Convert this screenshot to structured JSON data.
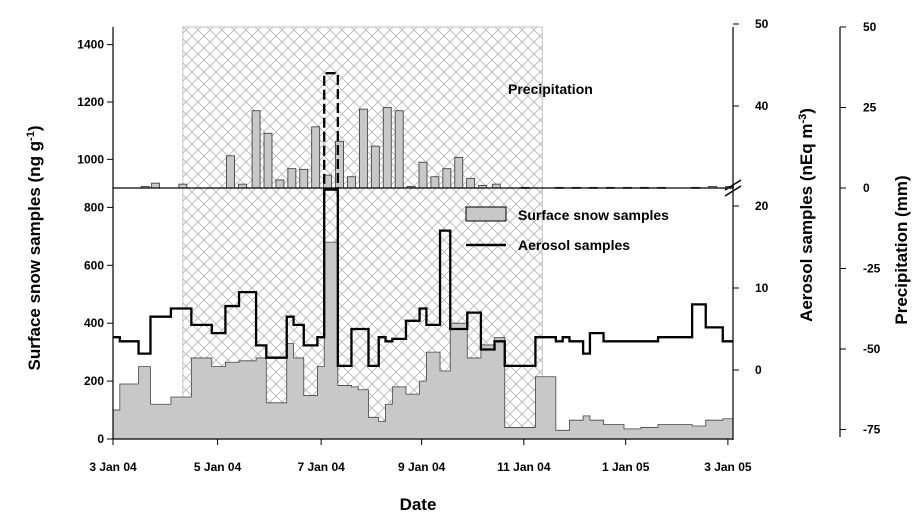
{
  "chart_data": {
    "type": "bar",
    "xlabel": "Date",
    "x_tick_labels": [
      "3 Jan 04",
      "5 Jan 04",
      "7 Jan 04",
      "9 Jan 04",
      "11 Jan 04",
      "1 Jan 05",
      "3 Jan 05"
    ],
    "ylabel_left_lower": "Surface snow samples (ng g⁻¹)",
    "ylabel_left_lower_base": "Surface snow samples (ng g",
    "ylabel_left_lower_sup": "-1",
    "ylabel_left_lower_close": ")",
    "ylabel_right_inner": "Aerosol samples (nEq m⁻³)",
    "ylabel_right_inner_base": "Aerosol samples (nEq m",
    "ylabel_right_inner_sup": "-3",
    "ylabel_right_inner_close": ")",
    "ylabel_right_outer": "Precipitation (mm)",
    "annotation_upper": "Precipitation",
    "left_upper_ticks": [
      "1000",
      "1200",
      "1400"
    ],
    "left_lower_ticks": [
      "0",
      "200",
      "400",
      "600",
      "800"
    ],
    "right_inner_upper_ticks": [
      "40",
      "50"
    ],
    "right_inner_lower_ticks": [
      "0",
      "10",
      "20"
    ],
    "right_outer_ticks": [
      "-75",
      "-50",
      "-25",
      "0",
      "25",
      "50"
    ],
    "legend": [
      {
        "name": "Surface snow samples",
        "style": "filled-gray"
      },
      {
        "name": "Aerosol samples",
        "style": "black-line"
      }
    ],
    "colors": {
      "snow_fill": "#c8c8c8",
      "line": "#000000",
      "hatch": "#b4b4b4"
    },
    "series": [
      {
        "name": "Surface snow samples",
        "unit": "ng g-1",
        "x": [
          0,
          0.2,
          0.75,
          1.1,
          1.7,
          2.3,
          2.9,
          3.3,
          3.7,
          4.2,
          4.5,
          5.1,
          5.3,
          5.6,
          6.0,
          6.2,
          6.6,
          7.0,
          7.2,
          7.5,
          7.8,
          8.0,
          8.2,
          8.6,
          9.0,
          9.2,
          9.6,
          9.9,
          10.4,
          10.8,
          11.2,
          11.5,
          12.4,
          12.7,
          13.0,
          13.2,
          13.4,
          13.8,
          14.0,
          14.4,
          15.0,
          15.5,
          16.0,
          16.6,
          17.0,
          17.4,
          17.9,
          18.0,
          18.2
        ],
        "y": [
          100,
          190,
          250,
          120,
          145,
          280,
          250,
          265,
          270,
          280,
          125,
          330,
          280,
          150,
          250,
          680,
          185,
          180,
          170,
          75,
          60,
          120,
          180,
          155,
          200,
          300,
          235,
          400,
          280,
          325,
          350,
          40,
          215,
          215,
          30,
          30,
          65,
          80,
          65,
          50,
          35,
          40,
          50,
          50,
          45,
          65,
          70,
          70,
          110
        ]
      },
      {
        "name": "Aerosol samples",
        "unit": "nEq m-3",
        "x": [
          0,
          0.2,
          0.75,
          1.1,
          1.7,
          2.3,
          2.9,
          3.3,
          3.7,
          4.2,
          4.5,
          5.1,
          5.3,
          5.6,
          6.0,
          6.2,
          6.6,
          7.0,
          7.2,
          7.5,
          7.8,
          8.0,
          8.2,
          8.6,
          9.0,
          9.2,
          9.6,
          9.9,
          10.4,
          10.8,
          11.2,
          11.5,
          12.4,
          12.7,
          13.0,
          13.2,
          13.4,
          13.8,
          14.0,
          14.4,
          15.0,
          15.5,
          16.0,
          16.6,
          17.0,
          17.4,
          17.9,
          18.0,
          18.2
        ],
        "y": [
          4,
          3.5,
          2,
          6.5,
          7.5,
          5.5,
          4.5,
          7.8,
          9.5,
          3,
          1.5,
          6.5,
          5.5,
          3,
          4,
          22,
          0.5,
          5,
          5,
          0.5,
          4,
          3.5,
          3.8,
          6,
          7.5,
          5.5,
          17,
          5,
          7,
          2.5,
          3.5,
          0.5,
          4,
          4,
          3.5,
          4,
          3.5,
          2,
          4.5,
          3.5,
          3.5,
          3.5,
          4,
          4,
          8,
          5.2,
          3.5,
          3.5,
          3.5
        ]
      },
      {
        "name": "Precipitation",
        "unit": "mm",
        "x": [
          0.95,
          1.25,
          2.05,
          3.45,
          3.8,
          4.2,
          4.55,
          4.9,
          5.25,
          5.6,
          5.95,
          6.3,
          6.65,
          7.0,
          7.35,
          7.7,
          8.05,
          8.4,
          8.75,
          9.1,
          9.45,
          9.8,
          10.15,
          10.5,
          10.85,
          11.25,
          12.1,
          13.1,
          13.6,
          14.1,
          14.6,
          15.1,
          15.6,
          16.1,
          17.1,
          17.6,
          18.1
        ],
        "y": [
          0.5,
          1.5,
          1.2,
          10,
          1.2,
          24,
          17,
          2.5,
          6,
          5.8,
          19,
          4,
          14.5,
          3.5,
          24.5,
          13,
          25,
          24,
          0.5,
          8,
          3.5,
          6,
          9.5,
          3,
          0.8,
          1.2,
          0.2,
          0.2,
          0.2,
          0.2,
          0.2,
          0.2,
          0.2,
          0.2,
          0.2,
          0.5,
          0.5
        ]
      }
    ],
    "scale": {
      "x_axis": "sample index (tick labels at 0, 3.07, 6.11, 9.06, 12.06, 15.05, 18.05)",
      "left_lower_ylim": [
        0,
        880
      ],
      "left_upper_ylim": [
        900,
        1500
      ],
      "right_inner_lower_ylim": [
        -7.5,
        25
      ],
      "right_inner_upper_ylim": [
        30,
        50
      ],
      "right_outer_ylim": [
        -75,
        50
      ]
    },
    "shaded_region_x": [
      2.05,
      12.6
    ],
    "line_break_segment": {
      "x": 6.2,
      "from": 21,
      "to": 24
    }
  }
}
